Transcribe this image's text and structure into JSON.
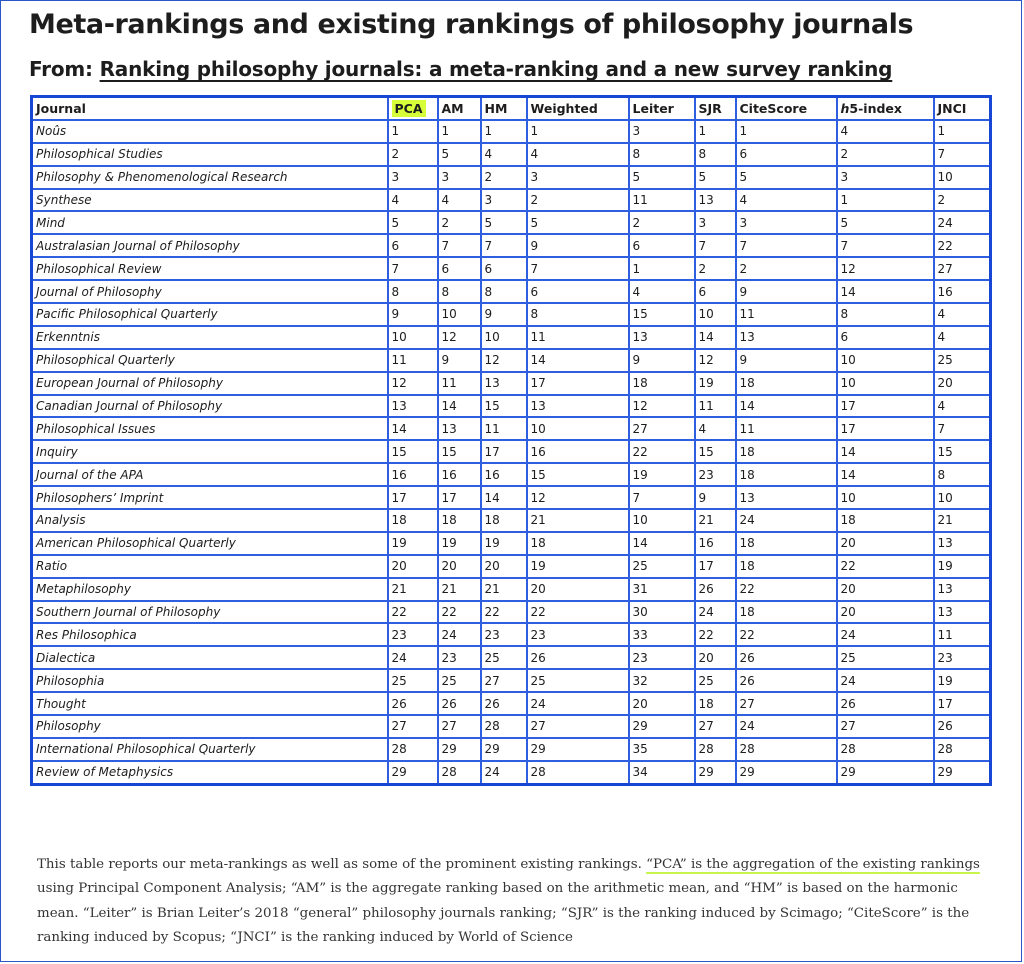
{
  "title": "Meta-rankings and existing rankings of philosophy journals",
  "subtitle": {
    "prefix": "From: ",
    "link": "Ranking philosophy journals: a meta-ranking and a new survey ranking"
  },
  "table": {
    "headers": {
      "journal": "Journal",
      "pca": "PCA",
      "am": "AM",
      "hm": "HM",
      "weighted": "Weighted",
      "leiter": "Leiter",
      "sjr": "SJR",
      "citescore": "CiteScore",
      "h5_prefix": "h",
      "h5_suffix": "5-index",
      "jnci": "JNCI"
    },
    "highlight_color": "#d6ff3a",
    "rows": [
      {
        "journal": "Noûs",
        "pca": "1",
        "am": "1",
        "hm": "1",
        "weighted": "1",
        "leiter": "3",
        "sjr": "1",
        "citescore": "1",
        "h5": "4",
        "jnci": "1"
      },
      {
        "journal": "Philosophical Studies",
        "pca": "2",
        "am": "5",
        "hm": "4",
        "weighted": "4",
        "leiter": "8",
        "sjr": "8",
        "citescore": "6",
        "h5": "2",
        "jnci": "7"
      },
      {
        "journal": "Philosophy & Phenomenological Research",
        "pca": "3",
        "am": "3",
        "hm": "2",
        "weighted": "3",
        "leiter": "5",
        "sjr": "5",
        "citescore": "5",
        "h5": "3",
        "jnci": "10"
      },
      {
        "journal": "Synthese",
        "pca": "4",
        "am": "4",
        "hm": "3",
        "weighted": "2",
        "leiter": "11",
        "sjr": "13",
        "citescore": "4",
        "h5": "1",
        "jnci": "2"
      },
      {
        "journal": "Mind",
        "pca": "5",
        "am": "2",
        "hm": "5",
        "weighted": "5",
        "leiter": "2",
        "sjr": "3",
        "citescore": "3",
        "h5": "5",
        "jnci": "24"
      },
      {
        "journal": "Australasian Journal of Philosophy",
        "pca": "6",
        "am": "7",
        "hm": "7",
        "weighted": "9",
        "leiter": "6",
        "sjr": "7",
        "citescore": "7",
        "h5": "7",
        "jnci": "22"
      },
      {
        "journal": "Philosophical Review",
        "pca": "7",
        "am": "6",
        "hm": "6",
        "weighted": "7",
        "leiter": "1",
        "sjr": "2",
        "citescore": "2",
        "h5": "12",
        "jnci": "27"
      },
      {
        "journal": "Journal of Philosophy",
        "pca": "8",
        "am": "8",
        "hm": "8",
        "weighted": "6",
        "leiter": "4",
        "sjr": "6",
        "citescore": "9",
        "h5": "14",
        "jnci": "16"
      },
      {
        "journal": "Pacific Philosophical Quarterly",
        "pca": "9",
        "am": "10",
        "hm": "9",
        "weighted": "8",
        "leiter": "15",
        "sjr": "10",
        "citescore": "11",
        "h5": "8",
        "jnci": "4"
      },
      {
        "journal": "Erkenntnis",
        "pca": "10",
        "am": "12",
        "hm": "10",
        "weighted": "11",
        "leiter": "13",
        "sjr": "14",
        "citescore": "13",
        "h5": "6",
        "jnci": "4"
      },
      {
        "journal": "Philosophical Quarterly",
        "pca": "11",
        "am": "9",
        "hm": "12",
        "weighted": "14",
        "leiter": "9",
        "sjr": "12",
        "citescore": "9",
        "h5": "10",
        "jnci": "25"
      },
      {
        "journal": "European Journal of Philosophy",
        "pca": "12",
        "am": "11",
        "hm": "13",
        "weighted": "17",
        "leiter": "18",
        "sjr": "19",
        "citescore": "18",
        "h5": "10",
        "jnci": "20"
      },
      {
        "journal": "Canadian Journal of Philosophy",
        "pca": "13",
        "am": "14",
        "hm": "15",
        "weighted": "13",
        "leiter": "12",
        "sjr": "11",
        "citescore": "14",
        "h5": "17",
        "jnci": "4"
      },
      {
        "journal": "Philosophical Issues",
        "pca": "14",
        "am": "13",
        "hm": "11",
        "weighted": "10",
        "leiter": "27",
        "sjr": "4",
        "citescore": "11",
        "h5": "17",
        "jnci": "7"
      },
      {
        "journal": "Inquiry",
        "pca": "15",
        "am": "15",
        "hm": "17",
        "weighted": "16",
        "leiter": "22",
        "sjr": "15",
        "citescore": "18",
        "h5": "14",
        "jnci": "15"
      },
      {
        "journal": "Journal of the APA",
        "pca": "16",
        "am": "16",
        "hm": "16",
        "weighted": "15",
        "leiter": "19",
        "sjr": "23",
        "citescore": "18",
        "h5": "14",
        "jnci": "8"
      },
      {
        "journal": "Philosophers’ Imprint",
        "pca": "17",
        "am": "17",
        "hm": "14",
        "weighted": "12",
        "leiter": "7",
        "sjr": "9",
        "citescore": "13",
        "h5": "10",
        "jnci": "10"
      },
      {
        "journal": "Analysis",
        "pca": "18",
        "am": "18",
        "hm": "18",
        "weighted": "21",
        "leiter": "10",
        "sjr": "21",
        "citescore": "24",
        "h5": "18",
        "jnci": "21"
      },
      {
        "journal": "American Philosophical Quarterly",
        "pca": "19",
        "am": "19",
        "hm": "19",
        "weighted": "18",
        "leiter": "14",
        "sjr": "16",
        "citescore": "18",
        "h5": "20",
        "jnci": "13"
      },
      {
        "journal": "Ratio",
        "pca": "20",
        "am": "20",
        "hm": "20",
        "weighted": "19",
        "leiter": "25",
        "sjr": "17",
        "citescore": "18",
        "h5": "22",
        "jnci": "19"
      },
      {
        "journal": "Metaphilosophy",
        "pca": "21",
        "am": "21",
        "hm": "21",
        "weighted": "20",
        "leiter": "31",
        "sjr": "26",
        "citescore": "22",
        "h5": "20",
        "jnci": "13"
      },
      {
        "journal": "Southern Journal of Philosophy",
        "pca": "22",
        "am": "22",
        "hm": "22",
        "weighted": "22",
        "leiter": "30",
        "sjr": "24",
        "citescore": "18",
        "h5": "20",
        "jnci": "13"
      },
      {
        "journal": "Res Philosophica",
        "pca": "23",
        "am": "24",
        "hm": "23",
        "weighted": "23",
        "leiter": "33",
        "sjr": "22",
        "citescore": "22",
        "h5": "24",
        "jnci": "11"
      },
      {
        "journal": "Dialectica",
        "pca": "24",
        "am": "23",
        "hm": "25",
        "weighted": "26",
        "leiter": "23",
        "sjr": "20",
        "citescore": "26",
        "h5": "25",
        "jnci": "23"
      },
      {
        "journal": "Philosophia",
        "pca": "25",
        "am": "25",
        "hm": "27",
        "weighted": "25",
        "leiter": "32",
        "sjr": "25",
        "citescore": "26",
        "h5": "24",
        "jnci": "19"
      },
      {
        "journal": "Thought",
        "pca": "26",
        "am": "26",
        "hm": "26",
        "weighted": "24",
        "leiter": "20",
        "sjr": "18",
        "citescore": "27",
        "h5": "26",
        "jnci": "17"
      },
      {
        "journal": "Philosophy",
        "pca": "27",
        "am": "27",
        "hm": "28",
        "weighted": "27",
        "leiter": "29",
        "sjr": "27",
        "citescore": "24",
        "h5": "27",
        "jnci": "26"
      },
      {
        "journal": "International Philosophical Quarterly",
        "pca": "28",
        "am": "29",
        "hm": "29",
        "weighted": "29",
        "leiter": "35",
        "sjr": "28",
        "citescore": "28",
        "h5": "28",
        "jnci": "28"
      },
      {
        "journal": "Review of Metaphysics",
        "pca": "29",
        "am": "28",
        "hm": "24",
        "weighted": "28",
        "leiter": "34",
        "sjr": "29",
        "citescore": "29",
        "h5": "29",
        "jnci": "29"
      }
    ]
  },
  "caption": {
    "before": "This table reports our meta-rankings as well as some of the prominent existing rankings. ",
    "underlined": "“PCA” is the aggregation of the existing rankings",
    "after": " using Principal Component Analysis; “AM” is the aggregate ranking based on the arithmetic mean, and “HM” is based on the harmonic mean. “Leiter” is Brian Leiter’s 2018 “general” philosophy journals ranking; “SJR” is the ranking induced by Scimago; “CiteScore” is the ranking induced by Scopus; “JNCI” is the ranking induced by World of Science"
  }
}
